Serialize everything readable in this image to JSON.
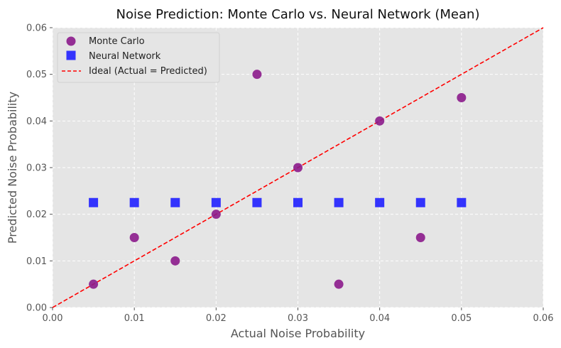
{
  "chart_data": {
    "type": "scatter",
    "title": "Noise Prediction: Monte Carlo vs. Neural Network (Mean)",
    "xlabel": "Actual Noise Probability",
    "ylabel": "Predicted Noise Probability",
    "xlim": [
      0.0,
      0.06
    ],
    "ylim": [
      0.0,
      0.06
    ],
    "xticks": [
      "0.00",
      "0.01",
      "0.02",
      "0.03",
      "0.04",
      "0.05",
      "0.06"
    ],
    "yticks": [
      "0.00",
      "0.01",
      "0.02",
      "0.03",
      "0.04",
      "0.05",
      "0.06"
    ],
    "grid": true,
    "legend_position": "top-left",
    "series": [
      {
        "name": "Monte Carlo",
        "marker": "circle",
        "color": "#8B1A8B",
        "x": [
          0.005,
          0.01,
          0.015,
          0.02,
          0.025,
          0.03,
          0.035,
          0.04,
          0.045,
          0.05
        ],
        "y": [
          0.005,
          0.015,
          0.01,
          0.02,
          0.05,
          0.03,
          0.005,
          0.04,
          0.015,
          0.045
        ]
      },
      {
        "name": "Neural Network",
        "marker": "square",
        "color": "#1F1FFF",
        "x": [
          0.005,
          0.01,
          0.015,
          0.02,
          0.025,
          0.03,
          0.035,
          0.04,
          0.045,
          0.05
        ],
        "y": [
          0.0225,
          0.0225,
          0.0225,
          0.0225,
          0.0225,
          0.0225,
          0.0225,
          0.0225,
          0.0225,
          0.0225
        ]
      }
    ],
    "reference_line": {
      "name": "Ideal (Actual = Predicted)",
      "style": "dashed",
      "color": "#FF0000",
      "x": [
        0.0,
        0.06
      ],
      "y": [
        0.0,
        0.06
      ]
    },
    "plot_background": "#E5E5E5"
  }
}
